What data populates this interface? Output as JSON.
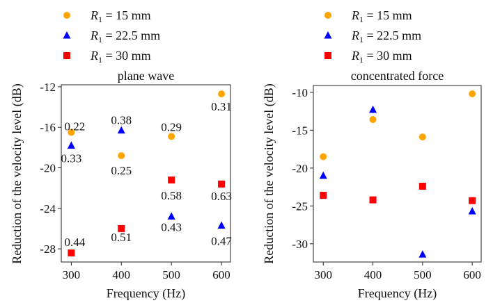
{
  "colors": {
    "R15": "#ffa500",
    "R22": "#0000ff",
    "R30": "#ff0000"
  },
  "legend": [
    {
      "label_var": "R",
      "label_sub": "1",
      "label_rest": " = 15 mm",
      "marker": "circle",
      "color": "#ffa500"
    },
    {
      "label_var": "R",
      "label_sub": "1",
      "label_rest": " = 22.5 mm",
      "marker": "triangle",
      "color": "#0000ff"
    },
    {
      "label_var": "R",
      "label_sub": "1",
      "label_rest": " = 30 mm",
      "marker": "square",
      "color": "#ff0000"
    }
  ],
  "chart_data": [
    {
      "type": "scatter",
      "title": "plane wave",
      "xlabel": "Frequency (Hz)",
      "ylabel": "Reduction of the velocity level (dB)",
      "x": [
        300,
        400,
        500,
        600
      ],
      "xticks": [
        "300",
        "400",
        "500",
        "600"
      ],
      "yticks": [
        -12,
        -16,
        -20,
        -24,
        -28
      ],
      "ytick_labels": [
        "-12",
        "-16",
        "-20",
        "-24",
        "-28"
      ],
      "xlim": [
        280,
        618
      ],
      "ylim": [
        -29.3,
        -11.8
      ],
      "legend_placement": "top",
      "series": [
        {
          "name": "R1 = 15 mm",
          "marker": "circle",
          "values": [
            -16.5,
            -18.8,
            -16.9,
            -12.7
          ],
          "annotations": [
            "0.22",
            "0.25",
            "0.29",
            "0.31"
          ]
        },
        {
          "name": "R1 = 22.5 mm",
          "marker": "triangle",
          "values": [
            -17.8,
            -16.3,
            -24.8,
            -25.7
          ],
          "annotations": [
            "0.33",
            "0.38",
            "0.43",
            "0.47"
          ]
        },
        {
          "name": "R1 = 30 mm",
          "marker": "square",
          "values": [
            -28.4,
            -26.0,
            -21.2,
            -21.6
          ],
          "annotations": [
            "0.44",
            "0.51",
            "0.58",
            "0.63"
          ]
        }
      ]
    },
    {
      "type": "scatter",
      "title": "concentrated force",
      "xlabel": "Frequency (Hz)",
      "ylabel": "Reduction of the velocity level (dB)",
      "x": [
        300,
        400,
        500,
        600
      ],
      "xticks": [
        "300",
        "400",
        "500",
        "600"
      ],
      "yticks": [
        -10,
        -15,
        -20,
        -25,
        -30
      ],
      "ytick_labels": [
        "-10",
        "-15",
        "-20",
        "-25",
        "-30"
      ],
      "xlim": [
        280,
        618
      ],
      "ylim": [
        -32.4,
        -9.1
      ],
      "legend_placement": "top",
      "series": [
        {
          "name": "R1 = 15 mm",
          "marker": "circle",
          "values": [
            -18.5,
            -13.6,
            -15.9,
            -10.2
          ]
        },
        {
          "name": "R1 = 22.5 mm",
          "marker": "triangle",
          "values": [
            -21.0,
            -12.3,
            -31.4,
            -25.7
          ]
        },
        {
          "name": "R1 = 30 mm",
          "marker": "square",
          "values": [
            -23.6,
            -24.2,
            -22.4,
            -24.3
          ]
        }
      ]
    }
  ]
}
